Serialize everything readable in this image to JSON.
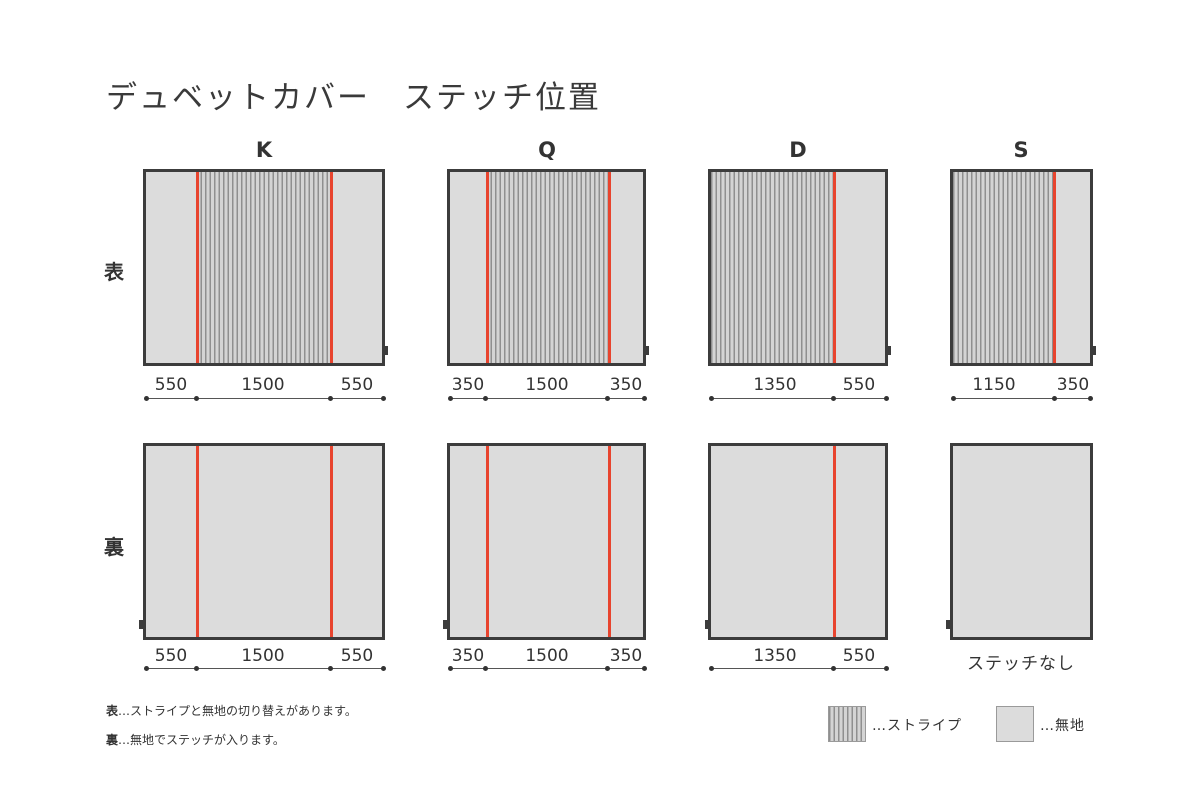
{
  "title": "デュベットカバー　ステッチ位置",
  "columns": [
    {
      "label": "K",
      "front_dims": [
        "550",
        "1500",
        "550"
      ],
      "back_dims": [
        "550",
        "1500",
        "550"
      ]
    },
    {
      "label": "Q",
      "front_dims": [
        "350",
        "1500",
        "350"
      ],
      "back_dims": [
        "350",
        "1500",
        "350"
      ]
    },
    {
      "label": "D",
      "front_dims": [
        "1350",
        "550"
      ],
      "back_dims": [
        "1350",
        "550"
      ]
    },
    {
      "label": "S",
      "front_dims": [
        "1150",
        "350"
      ],
      "back_text": "ステッチなし"
    }
  ],
  "rows": {
    "front": "表",
    "back": "裏"
  },
  "notes": [
    {
      "key": "表",
      "text": "…ストライプと無地の切り替えがあります。"
    },
    {
      "key": "裏",
      "text": "…無地でステッチが入ります。"
    }
  ],
  "legend": {
    "stripe_label": "…ストライプ",
    "plain_label": "…無地"
  },
  "colors": {
    "stitch": "#e8442e",
    "plain": "#dcdcdc",
    "border": "#3c3c3c"
  }
}
